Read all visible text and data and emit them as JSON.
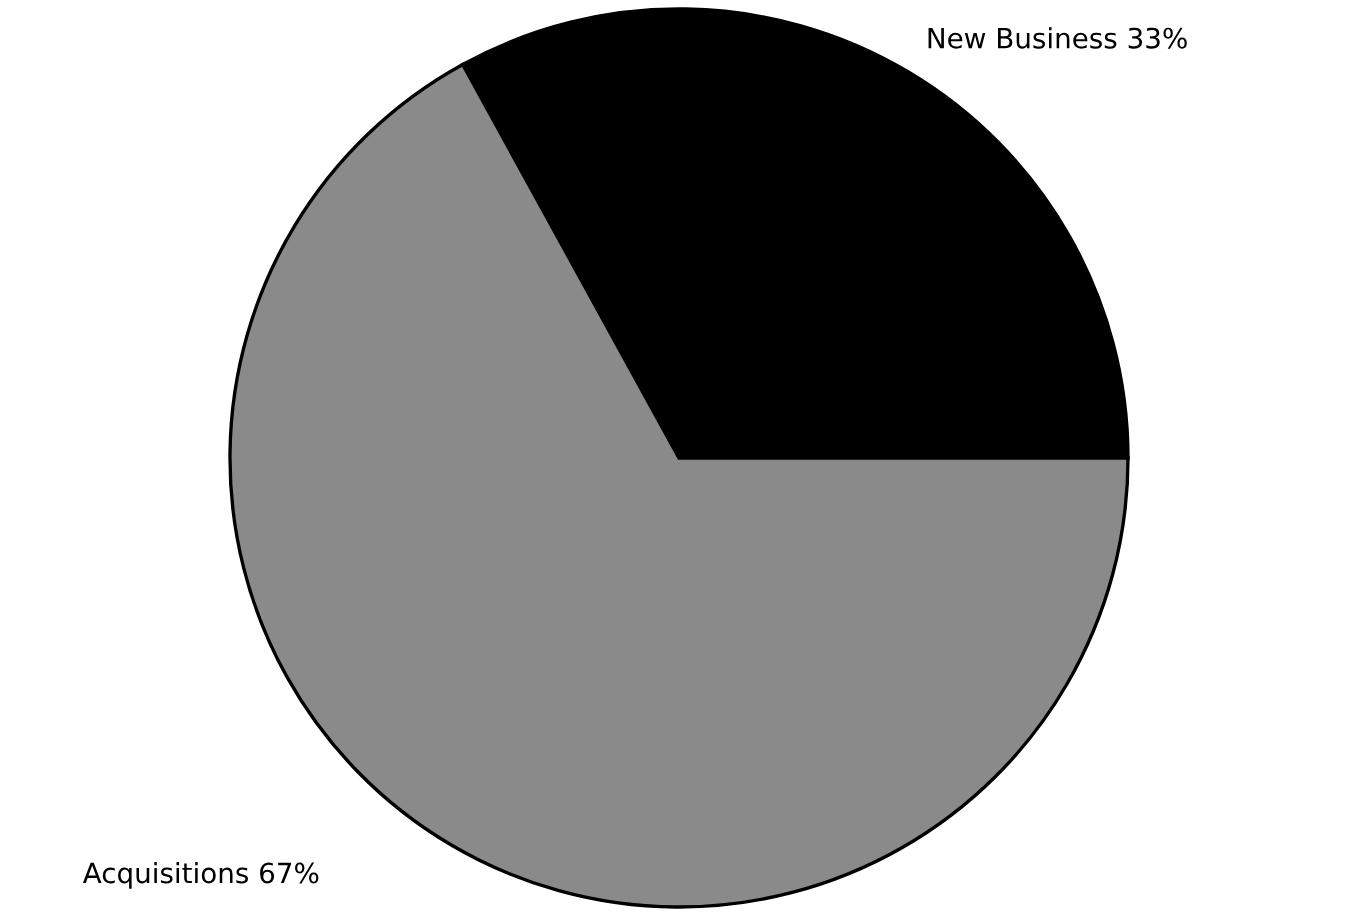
{
  "chart_data": {
    "type": "pie",
    "categories": [
      "New Business",
      "Acquisitions"
    ],
    "values": [
      33,
      67
    ],
    "value_labels": [
      "33%",
      "67%"
    ],
    "colors": [
      "#000000",
      "#8a8a8a"
    ]
  }
}
